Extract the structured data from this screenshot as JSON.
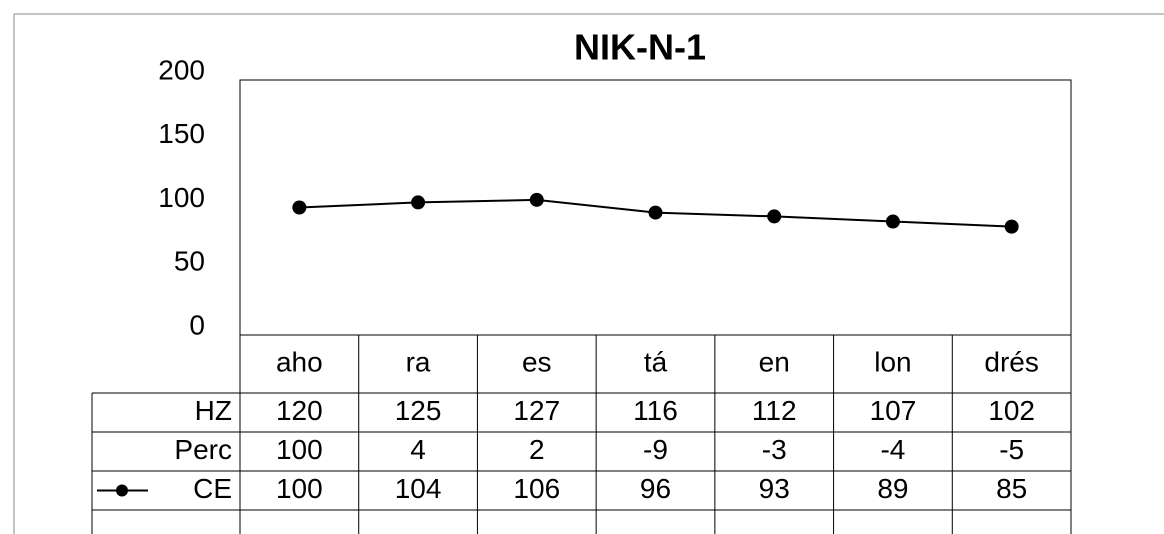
{
  "chart_data": {
    "type": "line",
    "title": "NIK-N-1",
    "categories": [
      "aho",
      "ra",
      "es",
      "tá",
      "en",
      "lon",
      "drés"
    ],
    "series": [
      {
        "name": "CE",
        "color": "#000000",
        "values": [
          100,
          104,
          106,
          96,
          93,
          89,
          85
        ]
      }
    ],
    "table_rows": [
      {
        "name": "HZ",
        "values": [
          120,
          125,
          127,
          116,
          112,
          107,
          102
        ]
      },
      {
        "name": "Perc",
        "values": [
          100,
          4,
          2,
          -9,
          -3,
          -4,
          -5
        ]
      }
    ],
    "ylim": [
      0,
      200
    ],
    "yticks": [
      0,
      50,
      100,
      150,
      200
    ],
    "grid": false
  }
}
